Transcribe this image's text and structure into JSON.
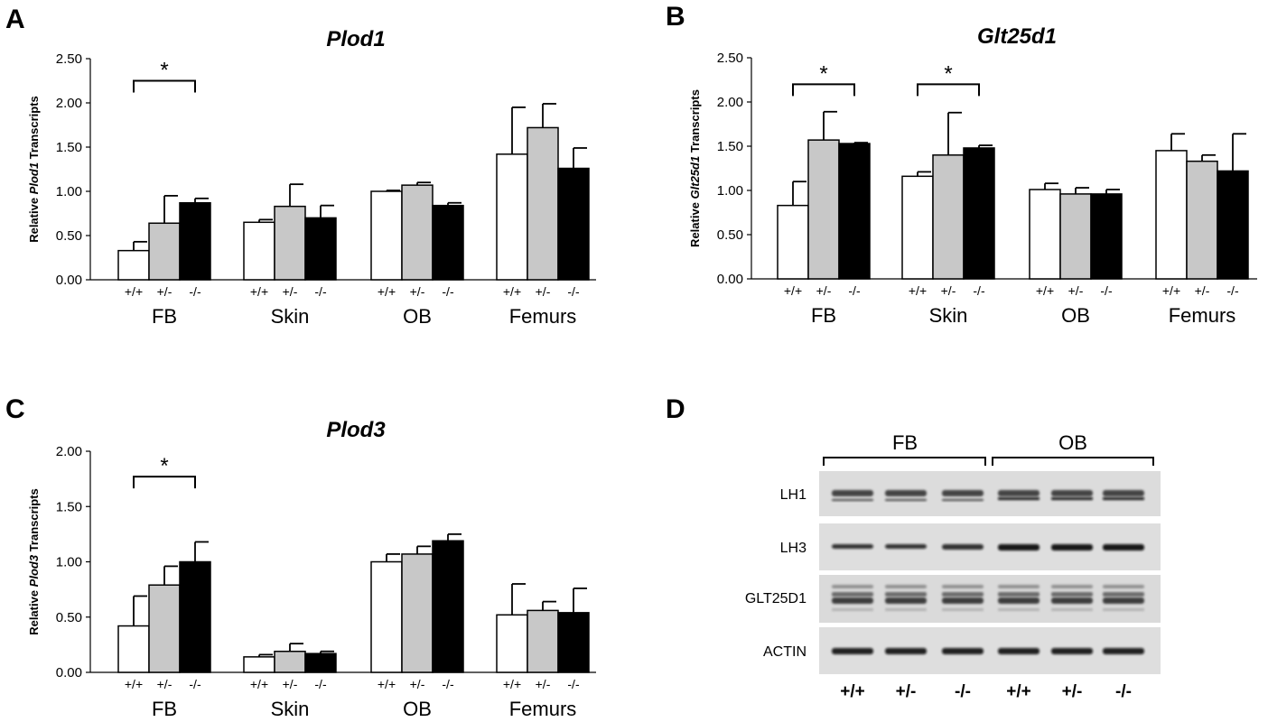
{
  "panels": {
    "A": "A",
    "B": "B",
    "C": "C",
    "D": "D"
  },
  "chart_data": [
    {
      "type": "bar",
      "panel": "A",
      "title": "Plod1",
      "ylabel_prefix": "Relative ",
      "ylabel_gene": "Plod1",
      "ylabel_suffix": " Transcripts",
      "ylim": [
        0,
        2.5
      ],
      "yticks": [
        "0.00",
        "0.50",
        "1.00",
        "1.50",
        "2.00",
        "2.50"
      ],
      "groups": [
        "FB",
        "Skin",
        "OB",
        "Femurs"
      ],
      "genotypes": [
        "+/+",
        "+/-",
        "-/-"
      ],
      "series_colors": [
        "#ffffff",
        "#c8c8c8",
        "#000000"
      ],
      "values": [
        [
          0.33,
          0.64,
          0.87
        ],
        [
          0.65,
          0.83,
          0.7
        ],
        [
          1.0,
          1.07,
          0.84
        ],
        [
          1.42,
          1.72,
          1.26
        ]
      ],
      "errors": [
        [
          0.1,
          0.31,
          0.05
        ],
        [
          0.03,
          0.25,
          0.14
        ],
        [
          0.01,
          0.03,
          0.03
        ],
        [
          0.53,
          0.27,
          0.23
        ]
      ],
      "significance": [
        {
          "group": 0,
          "from": 0,
          "to": 2,
          "y": 2.25,
          "label": "*"
        }
      ]
    },
    {
      "type": "bar",
      "panel": "B",
      "title": "Glt25d1",
      "ylabel_prefix": "Relative ",
      "ylabel_gene": "Glt25d1",
      "ylabel_suffix": " Transcripts",
      "ylim": [
        0,
        2.5
      ],
      "yticks": [
        "0.00",
        "0.50",
        "1.00",
        "1.50",
        "2.00",
        "2.50"
      ],
      "groups": [
        "FB",
        "Skin",
        "OB",
        "Femurs"
      ],
      "genotypes": [
        "+/+",
        "+/-",
        "-/-"
      ],
      "series_colors": [
        "#ffffff",
        "#c8c8c8",
        "#000000"
      ],
      "values": [
        [
          0.83,
          1.57,
          1.53
        ],
        [
          1.16,
          1.4,
          1.48
        ],
        [
          1.01,
          0.96,
          0.96
        ],
        [
          1.45,
          1.33,
          1.22
        ]
      ],
      "errors": [
        [
          0.27,
          0.32,
          0.01
        ],
        [
          0.05,
          0.48,
          0.03
        ],
        [
          0.07,
          0.07,
          0.05
        ],
        [
          0.19,
          0.07,
          0.42
        ]
      ],
      "significance": [
        {
          "group": 0,
          "from": 0,
          "to": 2,
          "y": 2.2,
          "label": "*"
        },
        {
          "group": 1,
          "from": 0,
          "to": 2,
          "y": 2.2,
          "label": "*"
        }
      ]
    },
    {
      "type": "bar",
      "panel": "C",
      "title": "Plod3",
      "ylabel_prefix": "Relative ",
      "ylabel_gene": "Plod3",
      "ylabel_suffix": " Transcripts",
      "ylim": [
        0,
        2.0
      ],
      "yticks": [
        "0.00",
        "0.50",
        "1.00",
        "1.50",
        "2.00"
      ],
      "groups": [
        "FB",
        "Skin",
        "OB",
        "Femurs"
      ],
      "genotypes": [
        "+/+",
        "+/-",
        "-/-"
      ],
      "series_colors": [
        "#ffffff",
        "#c8c8c8",
        "#000000"
      ],
      "values": [
        [
          0.42,
          0.79,
          1.0
        ],
        [
          0.14,
          0.19,
          0.17
        ],
        [
          1.0,
          1.07,
          1.19
        ],
        [
          0.52,
          0.56,
          0.54
        ]
      ],
      "errors": [
        [
          0.27,
          0.17,
          0.18
        ],
        [
          0.02,
          0.07,
          0.02
        ],
        [
          0.07,
          0.07,
          0.06
        ],
        [
          0.28,
          0.08,
          0.22
        ]
      ],
      "significance": [
        {
          "group": 0,
          "from": 0,
          "to": 2,
          "y": 1.77,
          "label": "*"
        }
      ]
    }
  ],
  "blot": {
    "groups": [
      "FB",
      "OB"
    ],
    "rows": [
      "LH1",
      "LH3",
      "GLT25D1",
      "ACTIN"
    ],
    "lanes": [
      "+/+",
      "+/-",
      "-/-",
      "+/+",
      "+/-",
      "-/-"
    ]
  }
}
